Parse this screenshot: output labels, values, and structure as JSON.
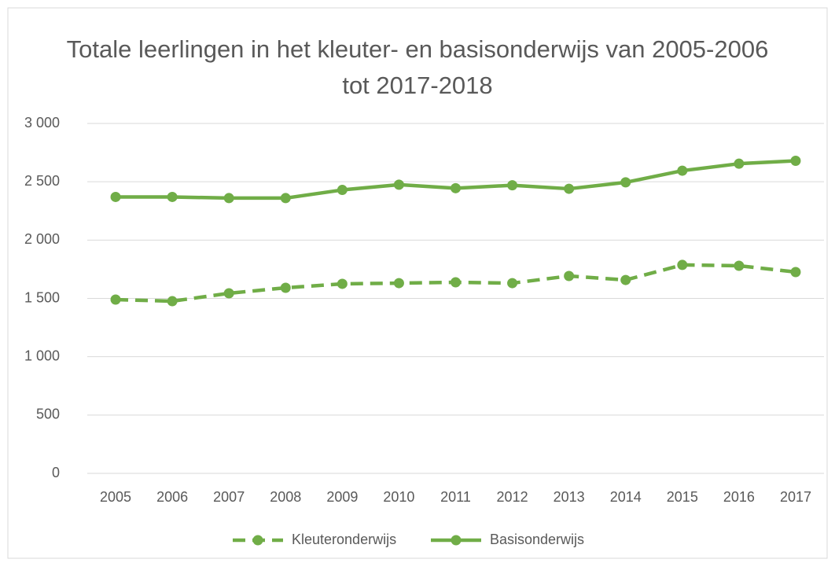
{
  "chart_data": {
    "type": "line",
    "title": "Totale leerlingen in het kleuter- en basisonderwijs van 2005-2006 tot 2017-2018",
    "categories": [
      "2005",
      "2006",
      "2007",
      "2008",
      "2009",
      "2010",
      "2011",
      "2012",
      "2013",
      "2014",
      "2015",
      "2016",
      "2017"
    ],
    "series": [
      {
        "name": "Kleuteronderwijs",
        "color": "#70ad47",
        "dash": true,
        "values": [
          1490,
          1476,
          1544,
          1591,
          1625,
          1631,
          1638,
          1631,
          1692,
          1658,
          1787,
          1780,
          1726
        ]
      },
      {
        "name": "Basisonderwijs",
        "color": "#70ad47",
        "dash": false,
        "values": [
          2370,
          2370,
          2360,
          2360,
          2430,
          2475,
          2445,
          2470,
          2440,
          2495,
          2595,
          2655,
          2680
        ]
      }
    ],
    "ylim": [
      0,
      3000
    ],
    "yticks": [
      0,
      500,
      {
        "value": 1000,
        "label": "1 000"
      },
      {
        "value": 1500,
        "label": "1 500"
      },
      {
        "value": 2000,
        "label": "2 000"
      },
      {
        "value": 2500,
        "label": "2 500"
      },
      {
        "value": 3000,
        "label": "3 000"
      }
    ],
    "grid": true,
    "legend": "bottom"
  }
}
